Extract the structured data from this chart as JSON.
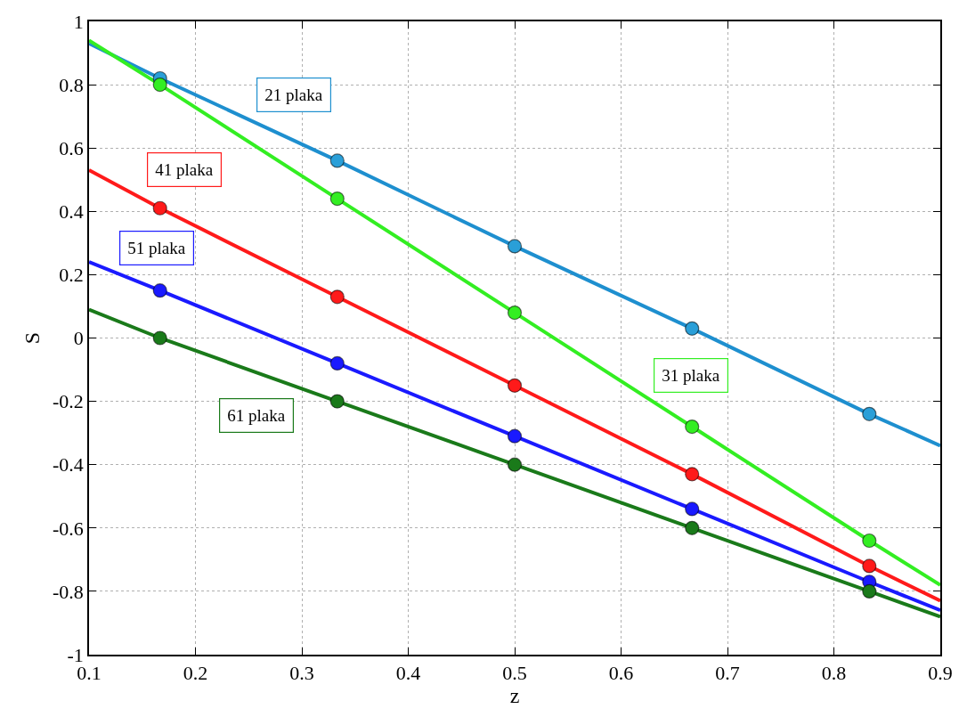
{
  "chart_data": {
    "type": "line",
    "xlabel": "z",
    "ylabel": "S",
    "xlim": [
      0.1,
      0.9
    ],
    "ylim": [
      -1,
      1
    ],
    "xticks": [
      0.1,
      0.2,
      0.3,
      0.4,
      0.5,
      0.6,
      0.7,
      0.8,
      0.9
    ],
    "yticks": [
      -1,
      -0.8,
      -0.6,
      -0.4,
      -0.2,
      0,
      0.2,
      0.4,
      0.6,
      0.8,
      1
    ],
    "grid": true,
    "legend": false,
    "line_style": "solid",
    "series": [
      {
        "name": "21 plaka",
        "marker": "none",
        "color": "#1e8fcf",
        "x": [
          0.1,
          0.1667,
          0.3333,
          0.5,
          0.6667,
          0.8333,
          0.9
        ],
        "values": [
          0.93,
          0.82,
          0.56,
          0.29,
          0.03,
          -0.24,
          -0.34
        ]
      },
      {
        "name": "31 plaka",
        "marker": "none",
        "color": "#33ee22",
        "x": [
          0.1,
          0.1667,
          0.3333,
          0.5,
          0.6667,
          0.8333,
          0.9
        ],
        "values": [
          0.94,
          0.8,
          0.44,
          0.08,
          -0.28,
          -0.64,
          -0.78
        ]
      },
      {
        "name": "41 plaka",
        "marker": "none",
        "color": "#ff1a1a",
        "x": [
          0.1,
          0.1667,
          0.3333,
          0.5,
          0.6667,
          0.8333,
          0.9
        ],
        "values": [
          0.53,
          0.41,
          0.13,
          -0.15,
          -0.43,
          -0.72,
          -0.83
        ]
      },
      {
        "name": "51 plaka",
        "marker": "none",
        "color": "#1a1aff",
        "x": [
          0.1,
          0.1667,
          0.3333,
          0.5,
          0.6667,
          0.8333,
          0.9
        ],
        "values": [
          0.24,
          0.15,
          -0.08,
          -0.31,
          -0.54,
          -0.77,
          -0.86
        ]
      },
      {
        "name": "61 plaka",
        "marker": "none",
        "color": "#1a7a1a",
        "x": [
          0.1,
          0.1667,
          0.3333,
          0.5,
          0.6667,
          0.8333,
          0.9
        ],
        "values": [
          0.09,
          0.0,
          -0.2,
          -0.4,
          -0.6,
          -0.8,
          -0.88
        ]
      },
      {
        "type": "scatter",
        "marker": "circle",
        "color": "#2a9fd8",
        "x": [
          0.1667,
          0.3333,
          0.5,
          0.6667,
          0.8333
        ],
        "values": [
          0.82,
          0.56,
          0.29,
          0.03,
          -0.24
        ]
      },
      {
        "type": "scatter",
        "marker": "circle",
        "color": "#33ee22",
        "x": [
          0.1667,
          0.3333,
          0.5,
          0.6667,
          0.8333
        ],
        "values": [
          0.8,
          0.44,
          0.08,
          -0.28,
          -0.64
        ]
      },
      {
        "type": "scatter",
        "marker": "circle",
        "color": "#ff1a1a",
        "x": [
          0.1667,
          0.3333,
          0.5,
          0.6667,
          0.8333
        ],
        "values": [
          0.41,
          0.13,
          -0.15,
          -0.43,
          -0.72
        ]
      },
      {
        "type": "scatter",
        "marker": "circle",
        "color": "#1a1aff",
        "x": [
          0.1667,
          0.3333,
          0.5,
          0.6667,
          0.8333
        ],
        "values": [
          0.15,
          -0.08,
          -0.31,
          -0.54,
          -0.77
        ]
      },
      {
        "type": "scatter",
        "marker": "circle",
        "color": "#1a7a1a",
        "x": [
          0.1667,
          0.3333,
          0.5,
          0.6667,
          0.8333
        ],
        "values": [
          0.0,
          -0.2,
          -0.4,
          -0.6,
          -0.8
        ]
      }
    ]
  }
}
